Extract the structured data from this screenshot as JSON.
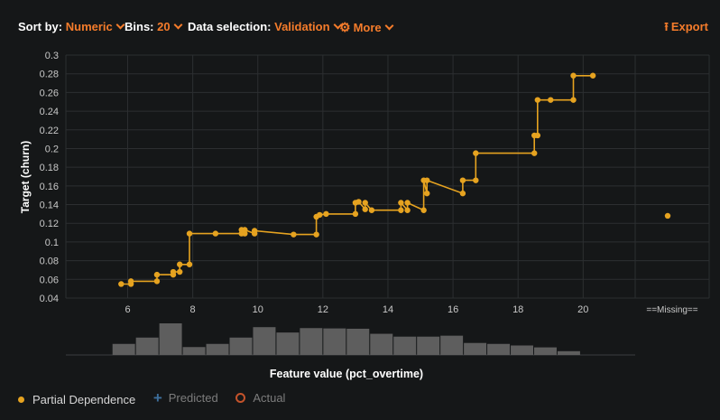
{
  "toolbar": {
    "sort_label": "Sort by:",
    "sort_value": "Numeric",
    "bins_label": "Bins:",
    "bins_value": "20",
    "data_label": "Data selection:",
    "data_value": "Validation",
    "more_label": "More",
    "export_label": "Export",
    "icons": {
      "more": "gear-icon",
      "export": "upload-arrow-icon",
      "dropdown": "chevron-down-icon"
    }
  },
  "legend": {
    "items": [
      {
        "label": "Partial Dependence",
        "icon": "dot-icon",
        "color": "#e6a320",
        "active": true
      },
      {
        "label": "Predicted",
        "icon": "plus-icon",
        "color": "#3d6f9c",
        "active": false
      },
      {
        "label": "Actual",
        "icon": "ring-icon",
        "color": "#c4532b",
        "active": false
      }
    ]
  },
  "chart_data": {
    "type": "line",
    "title": "",
    "xlabel": "Feature value (pct_overtime)",
    "ylabel": "Target (churn)",
    "xlim": [
      4.1,
      21.6
    ],
    "ylim": [
      0.04,
      0.3
    ],
    "x_ticks": [
      6,
      8,
      10,
      12,
      14,
      16,
      18,
      20
    ],
    "y_ticks": [
      0.04,
      0.06,
      0.08,
      0.1,
      0.12,
      0.14,
      0.16,
      0.18,
      0.2,
      0.22,
      0.24,
      0.26,
      0.28,
      0.3
    ],
    "missing_label": "==Missing==",
    "missing_value": 0.128,
    "grid": true,
    "step": true,
    "color": "#e6a320",
    "series": [
      {
        "name": "Partial Dependence",
        "x": [
          5.8,
          6.1,
          6.1,
          6.9,
          6.9,
          7.4,
          7.4,
          7.6,
          7.6,
          7.9,
          7.9,
          8.7,
          9.5,
          9.5,
          9.6,
          9.6,
          9.9,
          9.9,
          11.1,
          11.8,
          11.8,
          11.9,
          12.1,
          13.0,
          13.0,
          13.1,
          13.3,
          13.3,
          13.5,
          14.4,
          14.4,
          14.6,
          14.6,
          15.1,
          15.1,
          15.2,
          15.2,
          16.3,
          16.3,
          16.7,
          16.7,
          18.5,
          18.5,
          18.6,
          18.6,
          19.0,
          19.7,
          19.7,
          20.3
        ],
        "y": [
          0.055,
          0.055,
          0.058,
          0.058,
          0.065,
          0.065,
          0.068,
          0.068,
          0.076,
          0.076,
          0.109,
          0.109,
          0.109,
          0.113,
          0.109,
          0.113,
          0.109,
          0.112,
          0.108,
          0.108,
          0.127,
          0.129,
          0.13,
          0.13,
          0.142,
          0.143,
          0.135,
          0.142,
          0.134,
          0.134,
          0.142,
          0.134,
          0.142,
          0.134,
          0.166,
          0.152,
          0.166,
          0.152,
          0.166,
          0.166,
          0.195,
          0.195,
          0.214,
          0.214,
          0.252,
          0.252,
          0.252,
          0.278,
          0.278
        ]
      }
    ],
    "histogram": {
      "color": "#5e5e5e",
      "bin_start": 4.8,
      "bin_width": 0.72,
      "values": [
        0,
        0.35,
        0.55,
        1.0,
        0.25,
        0.35,
        0.55,
        0.88,
        0.71,
        0.85,
        0.84,
        0.83,
        0.67,
        0.58,
        0.58,
        0.61,
        0.38,
        0.35,
        0.3,
        0.24,
        0.12
      ]
    }
  }
}
